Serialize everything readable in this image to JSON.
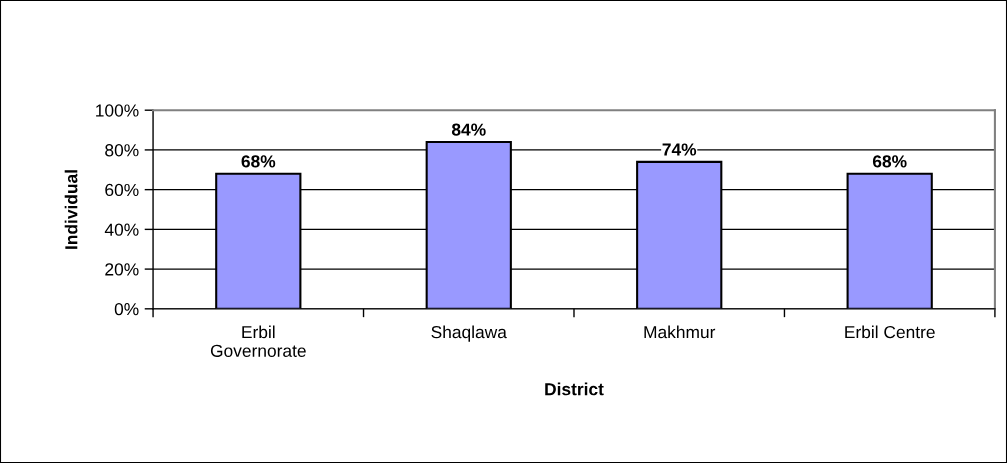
{
  "chart_data": {
    "type": "bar",
    "xlabel": "District",
    "ylabel": "Individual",
    "categories": [
      "Erbil\nGovernorate",
      "Shaqlawa",
      "Makhmur",
      "Erbil Centre"
    ],
    "values": [
      68,
      84,
      74,
      68
    ],
    "color": "#9999ff",
    "value_labels": [
      "68%",
      "84%",
      "74%",
      "68%"
    ],
    "ylim": [
      0,
      100
    ],
    "yticks": [
      {
        "value": 0,
        "label": "0%"
      },
      {
        "value": 20,
        "label": "20%"
      },
      {
        "value": 40,
        "label": "40%"
      },
      {
        "value": 60,
        "label": "60%"
      },
      {
        "value": 80,
        "label": "80%"
      },
      {
        "value": 100,
        "label": "100%"
      }
    ],
    "grid": "y",
    "legend": false
  }
}
